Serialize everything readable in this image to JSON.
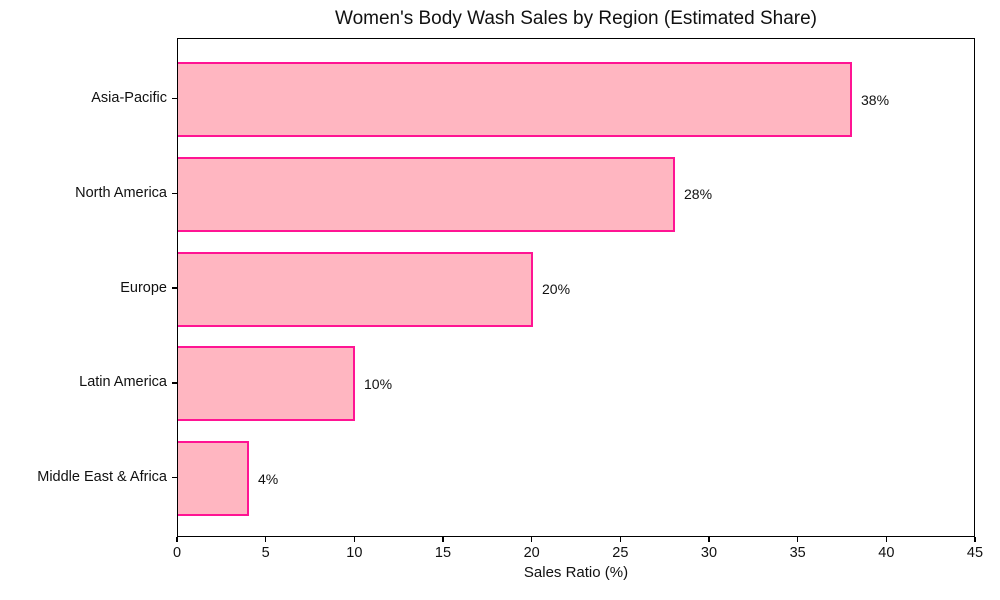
{
  "chart_data": {
    "type": "bar",
    "orientation": "horizontal",
    "title": "Women's Body Wash Sales by Region (Estimated Share)",
    "xlabel": "Sales Ratio (%)",
    "ylabel": "",
    "categories": [
      "Asia-Pacific",
      "North America",
      "Europe",
      "Latin America",
      "Middle East & Africa"
    ],
    "values": [
      38,
      28,
      20,
      10,
      4
    ],
    "value_labels": [
      "38%",
      "28%",
      "20%",
      "10%",
      "4%"
    ],
    "xlim": [
      0,
      45
    ],
    "xticks": [
      0,
      5,
      10,
      15,
      20,
      25,
      30,
      35,
      40,
      45
    ],
    "grid": false,
    "legend": "none",
    "bar_fill_color": "#ffb6c1",
    "bar_edge_color": "#ff1493",
    "spine_color": "#000000",
    "text_color": "#111111",
    "background_color": "#ffffff"
  }
}
